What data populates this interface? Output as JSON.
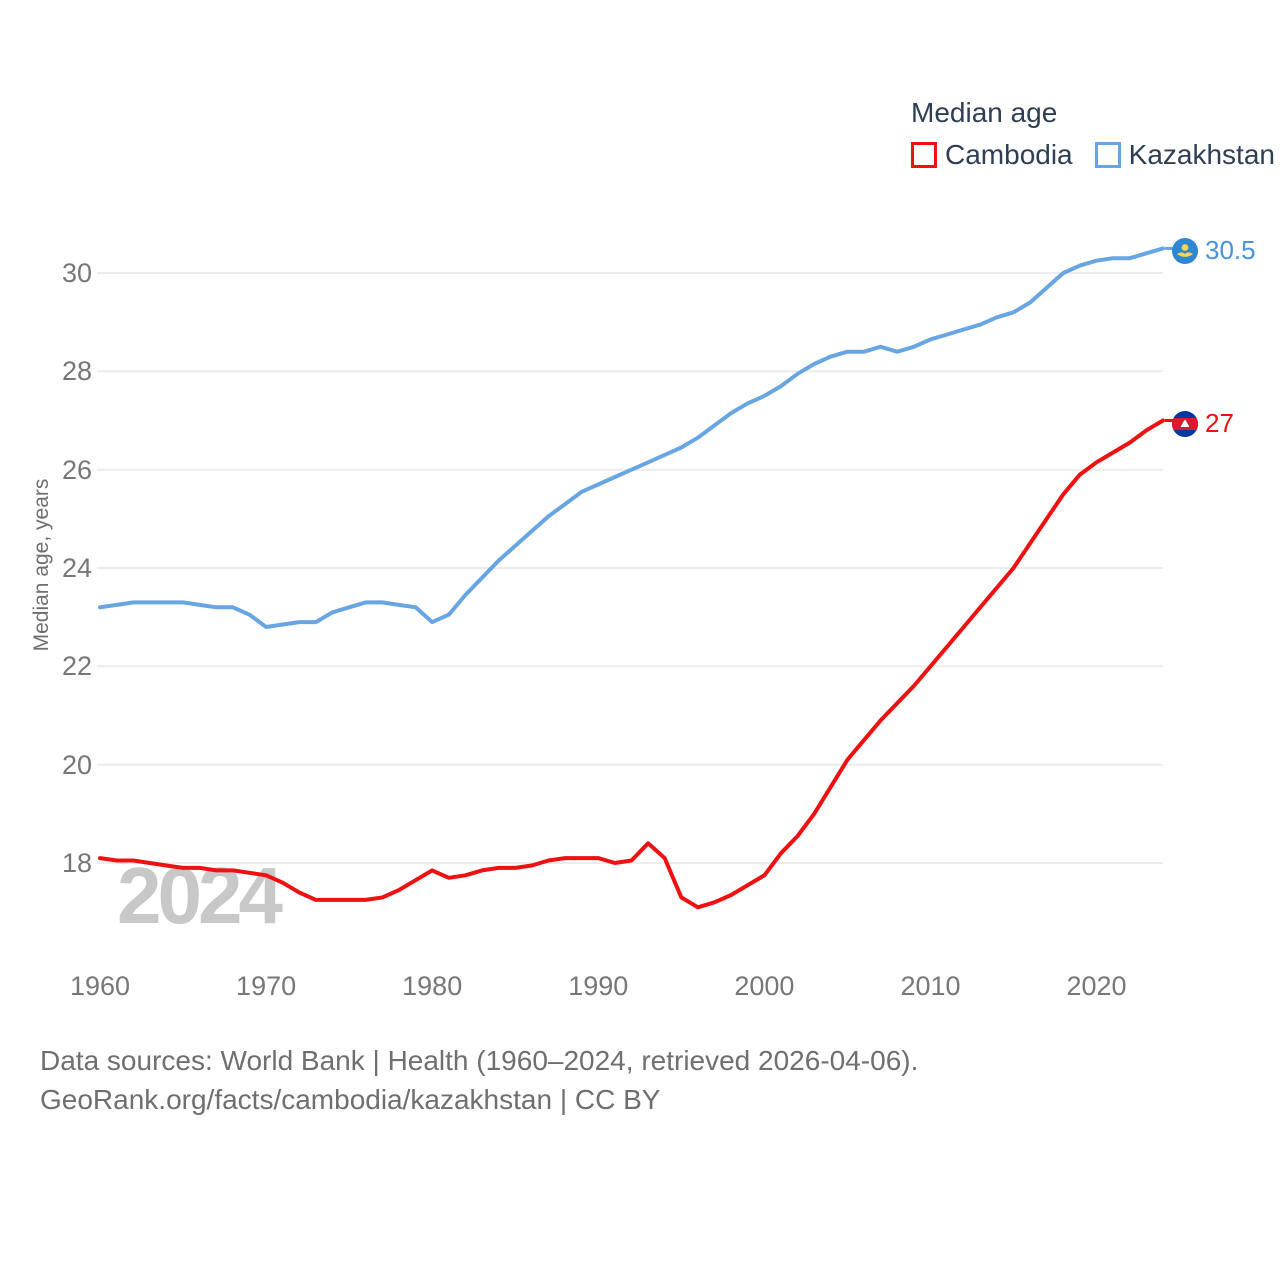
{
  "legend": {
    "title": "Median age"
  },
  "watermark": "2024",
  "footer": {
    "line1": "Data sources: World Bank | Health (1960–2024, retrieved 2026-04-06).",
    "line2": "GeoRank.org/facts/cambodia/kazakhstan | CC BY"
  },
  "end_labels": [
    {
      "series": "Kazakhstan",
      "value": "30.5"
    },
    {
      "series": "Cambodia",
      "value": "27"
    }
  ],
  "chart_data": {
    "type": "line",
    "title": "Median age",
    "xlabel": "",
    "ylabel": "Median age, years",
    "xlim": [
      1960,
      2024
    ],
    "ylim": [
      17,
      31
    ],
    "x_ticks": [
      1960,
      1970,
      1980,
      1990,
      2000,
      2010,
      2020
    ],
    "y_ticks": [
      18,
      20,
      22,
      24,
      26,
      28,
      30
    ],
    "grid": "horizontal",
    "legend_position": "top-right",
    "x": [
      1960,
      1961,
      1962,
      1963,
      1964,
      1965,
      1966,
      1967,
      1968,
      1969,
      1970,
      1971,
      1972,
      1973,
      1974,
      1975,
      1976,
      1977,
      1978,
      1979,
      1980,
      1981,
      1982,
      1983,
      1984,
      1985,
      1986,
      1987,
      1988,
      1989,
      1990,
      1991,
      1992,
      1993,
      1994,
      1995,
      1996,
      1997,
      1998,
      1999,
      2000,
      2001,
      2002,
      2003,
      2004,
      2005,
      2006,
      2007,
      2008,
      2009,
      2010,
      2011,
      2012,
      2013,
      2014,
      2015,
      2016,
      2017,
      2018,
      2019,
      2020,
      2021,
      2022,
      2023,
      2024
    ],
    "series": [
      {
        "name": "Cambodia",
        "color": "#ee1111",
        "end_label": "27",
        "values": [
          18.1,
          18.05,
          18.05,
          18.0,
          17.95,
          17.9,
          17.9,
          17.85,
          17.85,
          17.8,
          17.75,
          17.6,
          17.4,
          17.25,
          17.25,
          17.25,
          17.25,
          17.3,
          17.45,
          17.65,
          17.85,
          17.7,
          17.75,
          17.85,
          17.9,
          17.9,
          17.95,
          18.05,
          18.1,
          18.1,
          18.1,
          18.0,
          18.05,
          18.4,
          18.1,
          17.3,
          17.1,
          17.2,
          17.35,
          17.55,
          17.75,
          18.2,
          18.55,
          19.0,
          19.55,
          20.1,
          20.5,
          20.9,
          21.25,
          21.6,
          22.0,
          22.4,
          22.8,
          23.2,
          23.6,
          24.0,
          24.5,
          25.0,
          25.5,
          25.9,
          26.15,
          26.35,
          26.55,
          26.8,
          27.0
        ]
      },
      {
        "name": "Kazakhstan",
        "color": "#68a5e3",
        "end_label": "30.5",
        "values": [
          23.2,
          23.25,
          23.3,
          23.3,
          23.3,
          23.3,
          23.25,
          23.2,
          23.2,
          23.05,
          22.8,
          22.85,
          22.9,
          22.9,
          23.1,
          23.2,
          23.3,
          23.3,
          23.25,
          23.2,
          22.9,
          23.05,
          23.45,
          23.8,
          24.15,
          24.45,
          24.75,
          25.05,
          25.3,
          25.55,
          25.7,
          25.85,
          26.0,
          26.15,
          26.3,
          26.45,
          26.65,
          26.9,
          27.15,
          27.35,
          27.5,
          27.7,
          27.95,
          28.15,
          28.3,
          28.4,
          28.4,
          28.5,
          28.4,
          28.5,
          28.65,
          28.75,
          28.85,
          28.95,
          29.1,
          29.2,
          29.4,
          29.7,
          30.0,
          30.15,
          30.25,
          30.3,
          30.3,
          30.4,
          30.5
        ]
      }
    ]
  }
}
